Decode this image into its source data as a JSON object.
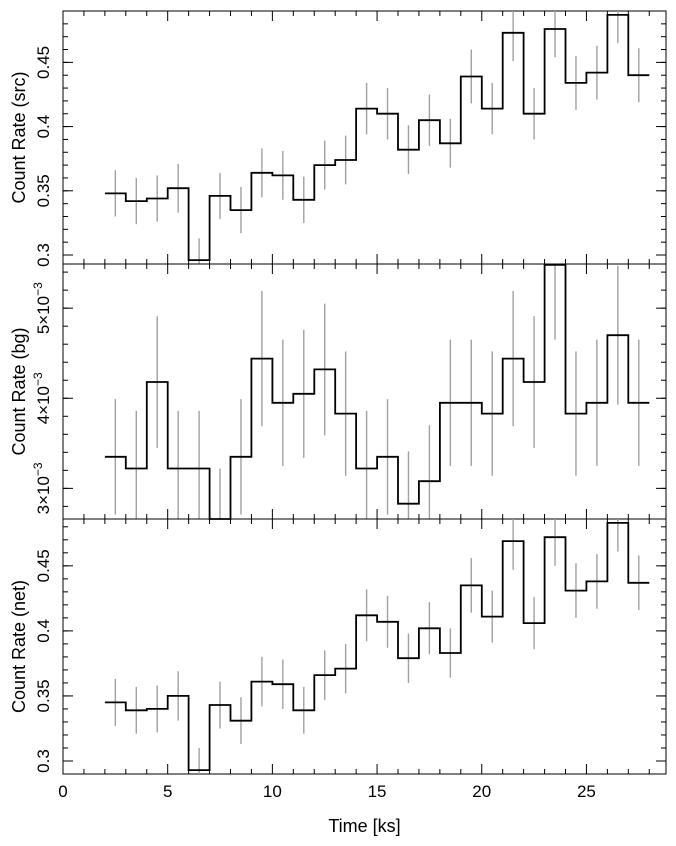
{
  "chart_data": [
    {
      "type": "line",
      "ylabel": "Count Rate (src)",
      "ylim": [
        0.293,
        0.49
      ],
      "yticks": [
        {
          "value": 0.3,
          "label": "0.3"
        },
        {
          "value": 0.35,
          "label": "0.35"
        },
        {
          "value": 0.4,
          "label": "0.4"
        },
        {
          "value": 0.45,
          "label": "0.45"
        }
      ],
      "y_minor_step": 0.01,
      "x": [
        2.5,
        3.5,
        4.5,
        5.5,
        6.5,
        7.5,
        8.5,
        9.5,
        10.5,
        11.5,
        12.5,
        13.5,
        14.5,
        15.5,
        16.5,
        17.5,
        18.5,
        19.5,
        20.5,
        21.5,
        22.5,
        23.5,
        24.5,
        25.5,
        26.5,
        27.5
      ],
      "values": [
        0.348,
        0.342,
        0.344,
        0.352,
        0.296,
        0.346,
        0.335,
        0.364,
        0.362,
        0.343,
        0.37,
        0.374,
        0.414,
        0.41,
        0.382,
        0.405,
        0.387,
        0.439,
        0.414,
        0.473,
        0.41,
        0.476,
        0.434,
        0.442,
        0.487,
        0.44
      ],
      "errors": [
        0.018,
        0.018,
        0.018,
        0.019,
        0.017,
        0.018,
        0.018,
        0.019,
        0.019,
        0.018,
        0.019,
        0.019,
        0.02,
        0.02,
        0.019,
        0.02,
        0.019,
        0.021,
        0.02,
        0.022,
        0.02,
        0.022,
        0.021,
        0.021,
        0.022,
        0.021
      ]
    },
    {
      "type": "line",
      "ylabel": "Count Rate (bg)",
      "ylim": [
        0.00266,
        0.00549
      ],
      "yticks": [
        {
          "value": 0.003,
          "mant": "3",
          "exp": "−3"
        },
        {
          "value": 0.004,
          "mant": "4",
          "exp": "−3"
        },
        {
          "value": 0.005,
          "mant": "5",
          "exp": "−3"
        }
      ],
      "y_minor_step": 0.0002,
      "x": [
        2.5,
        3.5,
        4.5,
        5.5,
        6.5,
        7.5,
        8.5,
        9.5,
        10.5,
        11.5,
        12.5,
        13.5,
        14.5,
        15.5,
        16.5,
        17.5,
        18.5,
        19.5,
        20.5,
        21.5,
        22.5,
        23.5,
        24.5,
        25.5,
        26.5,
        27.5
      ],
      "values": [
        0.00335,
        0.00322,
        0.00418,
        0.00322,
        0.00322,
        0.00264,
        0.00335,
        0.00444,
        0.00395,
        0.00405,
        0.00432,
        0.00383,
        0.00322,
        0.00335,
        0.00283,
        0.00308,
        0.00395,
        0.00395,
        0.00383,
        0.00444,
        0.00418,
        0.00548,
        0.00383,
        0.00395,
        0.0047,
        0.00395
      ],
      "errors": [
        0.00064,
        0.00064,
        0.00073,
        0.00064,
        0.00064,
        0.00058,
        0.00064,
        0.00075,
        0.0007,
        0.00071,
        0.00073,
        0.00069,
        0.00064,
        0.00064,
        0.00058,
        0.00062,
        0.0007,
        0.0007,
        0.00069,
        0.00075,
        0.00073,
        0.00083,
        0.00069,
        0.0007,
        0.00077,
        0.0007
      ]
    },
    {
      "type": "line",
      "ylabel": "Count Rate (net)",
      "xlabel": "Time [ks]",
      "xlim": [
        0,
        28.8
      ],
      "xticks": [
        {
          "value": 0,
          "label": "0"
        },
        {
          "value": 5,
          "label": "5"
        },
        {
          "value": 10,
          "label": "10"
        },
        {
          "value": 15,
          "label": "15"
        },
        {
          "value": 20,
          "label": "20"
        },
        {
          "value": 25,
          "label": "25"
        }
      ],
      "x_minor_step": 1,
      "ylim": [
        0.29,
        0.486
      ],
      "yticks": [
        {
          "value": 0.3,
          "label": "0.3"
        },
        {
          "value": 0.35,
          "label": "0.35"
        },
        {
          "value": 0.4,
          "label": "0.4"
        },
        {
          "value": 0.45,
          "label": "0.45"
        }
      ],
      "y_minor_step": 0.01,
      "x": [
        2.5,
        3.5,
        4.5,
        5.5,
        6.5,
        7.5,
        8.5,
        9.5,
        10.5,
        11.5,
        12.5,
        13.5,
        14.5,
        15.5,
        16.5,
        17.5,
        18.5,
        19.5,
        20.5,
        21.5,
        22.5,
        23.5,
        24.5,
        25.5,
        26.5,
        27.5
      ],
      "values": [
        0.345,
        0.339,
        0.34,
        0.35,
        0.293,
        0.343,
        0.331,
        0.361,
        0.359,
        0.339,
        0.366,
        0.371,
        0.412,
        0.407,
        0.379,
        0.402,
        0.383,
        0.435,
        0.411,
        0.469,
        0.406,
        0.472,
        0.431,
        0.438,
        0.483,
        0.437
      ],
      "errors": [
        0.018,
        0.018,
        0.018,
        0.019,
        0.017,
        0.018,
        0.018,
        0.019,
        0.019,
        0.018,
        0.019,
        0.019,
        0.02,
        0.02,
        0.019,
        0.02,
        0.019,
        0.021,
        0.02,
        0.022,
        0.02,
        0.022,
        0.021,
        0.021,
        0.022,
        0.021
      ]
    }
  ]
}
